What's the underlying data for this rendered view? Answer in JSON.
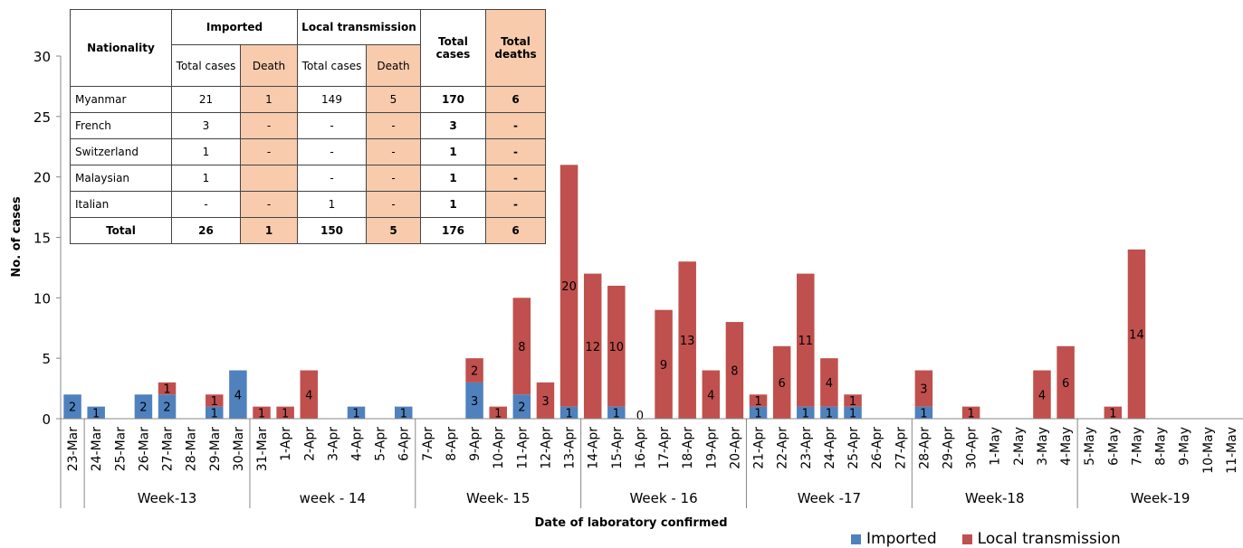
{
  "chart_data": {
    "type": "bar",
    "stacked": true,
    "ylabel": "No. of cases",
    "xlabel": "Date of laboratory confirmed",
    "ylim": [
      0,
      30
    ],
    "yticks": [
      0,
      5,
      10,
      15,
      20,
      25,
      30
    ],
    "categories": [
      "23-Mar",
      "24-Mar",
      "25-Mar",
      "26-Mar",
      "27-Mar",
      "28-Mar",
      "29-Mar",
      "30-Mar",
      "31-Mar",
      "1-Apr",
      "2-Apr",
      "3-Apr",
      "4-Apr",
      "5-Apr",
      "6-Apr",
      "7-Apr",
      "8-Apr",
      "9-Apr",
      "10-Apr",
      "11-Apr",
      "12-Apr",
      "13-Apr",
      "14-Apr",
      "15-Apr",
      "16-Apr",
      "17-Apr",
      "18-Apr",
      "19-Apr",
      "20-Apr",
      "21-Apr",
      "22-Apr",
      "23-Apr",
      "24-Apr",
      "25-Apr",
      "26-Apr",
      "27-Apr",
      "28-Apr",
      "29-Apr",
      "30-Apr",
      "1-May",
      "2-May",
      "3-May",
      "4-May",
      "5-May",
      "6-May",
      "7-May",
      "8-May",
      "9-May",
      "10-May",
      "11-Mav"
    ],
    "series": [
      {
        "name": "Imported",
        "color": "#4f81bd",
        "values": [
          2,
          1,
          0,
          2,
          2,
          0,
          1,
          4,
          0,
          0,
          0,
          0,
          1,
          0,
          1,
          0,
          0,
          3,
          0,
          2,
          0,
          1,
          0,
          1,
          0,
          0,
          0,
          0,
          0,
          1,
          0,
          1,
          1,
          1,
          0,
          0,
          1,
          0,
          0,
          0,
          0,
          0,
          0,
          0,
          0,
          0,
          0,
          0,
          0,
          0
        ]
      },
      {
        "name": "Local transmission",
        "color": "#c0504d",
        "values": [
          0,
          0,
          0,
          0,
          1,
          0,
          1,
          0,
          1,
          1,
          4,
          0,
          0,
          0,
          0,
          0,
          0,
          2,
          1,
          8,
          3,
          20,
          12,
          10,
          0,
          9,
          13,
          4,
          8,
          1,
          6,
          11,
          4,
          1,
          0,
          0,
          3,
          0,
          1,
          0,
          0,
          4,
          6,
          0,
          1,
          14,
          0,
          0,
          0,
          0
        ]
      }
    ],
    "imported_labels": [
      "2",
      "1",
      "",
      "2",
      "2",
      "",
      "1",
      "4",
      "",
      "",
      "",
      "",
      "1",
      "",
      "1",
      "",
      "",
      "3",
      "",
      "2",
      "",
      "1",
      "",
      "1",
      "",
      "",
      "",
      "",
      "",
      "1",
      "",
      "1",
      "1",
      "1",
      "",
      "",
      "1",
      "",
      "",
      "",
      "",
      "",
      "",
      "",
      "",
      "",
      "",
      "",
      "",
      ""
    ],
    "local_labels": [
      "",
      "",
      "",
      "",
      "1",
      "",
      "1",
      "",
      "1",
      "1",
      "4",
      "",
      "",
      "",
      "",
      "",
      "",
      "2",
      "1",
      "8",
      "3",
      "20",
      "12",
      "10",
      "0",
      "9",
      "13",
      "4",
      "8",
      "1",
      "6",
      "11",
      "4",
      "1",
      "",
      "",
      "3",
      "",
      "1",
      "",
      "",
      "4",
      "6",
      "",
      "1",
      "14",
      "",
      "",
      "",
      ""
    ],
    "weeks": [
      {
        "label": "Week-13",
        "start": 1,
        "end": 8
      },
      {
        "label": "week - 14",
        "start": 8,
        "end": 15
      },
      {
        "label": "Week- 15",
        "start": 15,
        "end": 22
      },
      {
        "label": "Week - 16",
        "start": 22,
        "end": 29
      },
      {
        "label": "Week -17",
        "start": 29,
        "end": 36
      },
      {
        "label": "Week-18",
        "start": 36,
        "end": 43
      },
      {
        "label": "Week-19",
        "start": 43,
        "end": 50
      }
    ],
    "legend": [
      "Imported",
      "Local transmission"
    ],
    "legend_position": "bottom-right"
  },
  "table": {
    "headers": {
      "nationality": "Nationality",
      "imported": "Imported",
      "local": "Local transmission",
      "total_cases": "Total cases",
      "total_deaths": "Total deaths",
      "sub_total_cases": "Total cases",
      "sub_death": "Death"
    },
    "rows": [
      {
        "name": "Myanmar",
        "imp_cases": "21",
        "imp_death": "1",
        "loc_cases": "149",
        "loc_death": "5",
        "total": "170",
        "deaths": "6"
      },
      {
        "name": "French",
        "imp_cases": "3",
        "imp_death": "-",
        "loc_cases": "-",
        "loc_death": "-",
        "total": "3",
        "deaths": "-"
      },
      {
        "name": "Switzerland",
        "imp_cases": "1",
        "imp_death": "-",
        "loc_cases": "-",
        "loc_death": "-",
        "total": "1",
        "deaths": "-"
      },
      {
        "name": "Malaysian",
        "imp_cases": "1",
        "imp_death": "",
        "loc_cases": "-",
        "loc_death": "-",
        "total": "1",
        "deaths": "-"
      },
      {
        "name": "Italian",
        "imp_cases": "-",
        "imp_death": "-",
        "loc_cases": "1",
        "loc_death": "-",
        "total": "1",
        "deaths": "-"
      }
    ],
    "total": {
      "name": "Total",
      "imp_cases": "26",
      "imp_death": "1",
      "loc_cases": "150",
      "loc_death": "5",
      "total": "176",
      "deaths": "6"
    }
  }
}
